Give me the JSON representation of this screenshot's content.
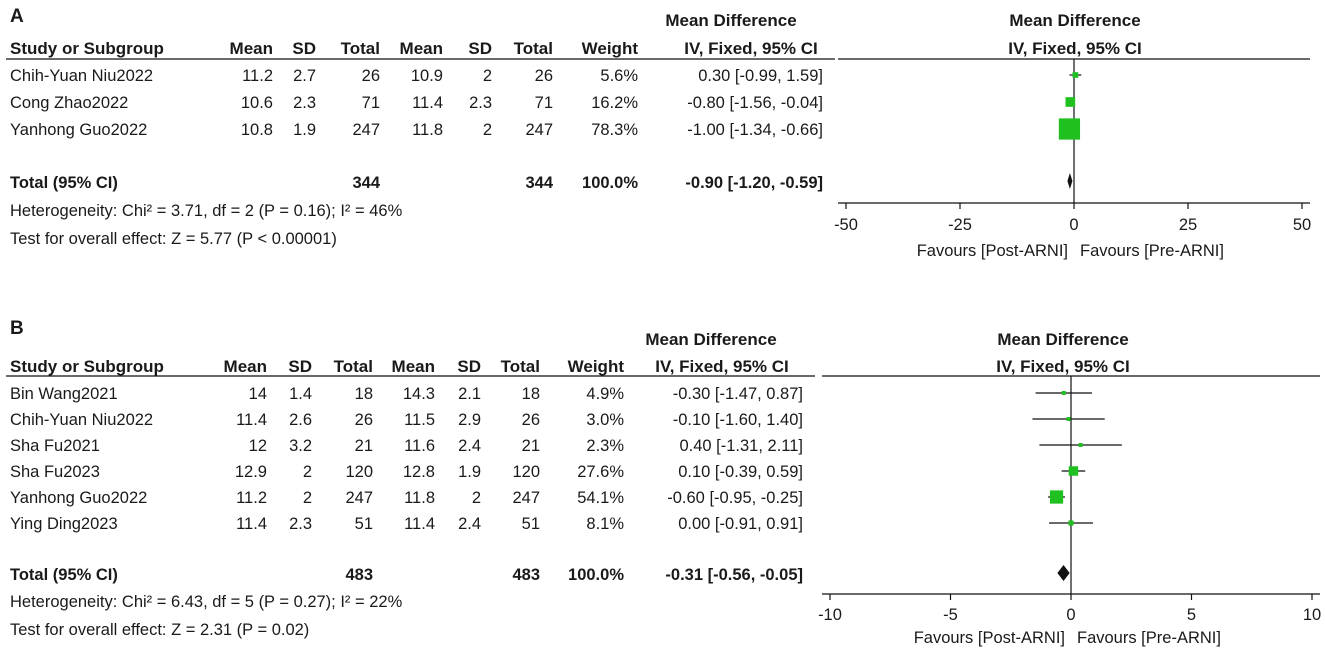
{
  "columns": {
    "study": "Study or Subgroup",
    "mean": "Mean",
    "sd": "SD",
    "total": "Total",
    "weight": "Weight",
    "md": "Mean Difference",
    "method": "IV, Fixed, 95% CI"
  },
  "colors": {
    "marker": "#1fc01f",
    "diamond": "#111111",
    "text": "#1a1a1a"
  },
  "chart_data": [
    {
      "type": "forest",
      "panel_label": "A",
      "studies": [
        {
          "name": "Chih-Yuan Niu2022",
          "post_mean": "11.2",
          "post_sd": "2.7",
          "post_total": "26",
          "pre_mean": "10.9",
          "pre_sd": "2",
          "pre_total": "26",
          "weight": "5.6%",
          "ci_text": "0.30 [-0.99, 1.59]",
          "md": 0.3,
          "lo": -0.99,
          "hi": 1.59,
          "w": 5.6
        },
        {
          "name": "Cong Zhao2022",
          "post_mean": "10.6",
          "post_sd": "2.3",
          "post_total": "71",
          "pre_mean": "11.4",
          "pre_sd": "2.3",
          "pre_total": "71",
          "weight": "16.2%",
          "ci_text": "-0.80 [-1.56, -0.04]",
          "md": -0.8,
          "lo": -1.56,
          "hi": -0.04,
          "w": 16.2
        },
        {
          "name": "Yanhong Guo2022",
          "post_mean": "10.8",
          "post_sd": "1.9",
          "post_total": "247",
          "pre_mean": "11.8",
          "pre_sd": "2",
          "pre_total": "247",
          "weight": "78.3%",
          "ci_text": "-1.00 [-1.34, -0.66]",
          "md": -1.0,
          "lo": -1.34,
          "hi": -0.66,
          "w": 78.3
        }
      ],
      "total": {
        "label": "Total (95% CI)",
        "post_total": "344",
        "pre_total": "344",
        "weight": "100.0%",
        "ci_text": "-0.90 [-1.20, -0.59]",
        "md": -0.9,
        "lo": -1.2,
        "hi": -0.59
      },
      "heterogeneity": "Heterogeneity: Chi² = 3.71, df = 2 (P = 0.16); I² = 46%",
      "overall_effect": "Test for overall effect: Z = 5.77 (P < 0.00001)",
      "axis": {
        "min": -50,
        "max": 50,
        "ticks": [
          -50,
          -25,
          0,
          25,
          50
        ],
        "tick_labels": [
          "-50",
          "-25",
          "0",
          "25",
          "50"
        ]
      },
      "favours_left": "Favours [Post-ARNI]",
      "favours_right": "Favours [Pre-ARNI]"
    },
    {
      "type": "forest",
      "panel_label": "B",
      "studies": [
        {
          "name": "Bin Wang2021",
          "post_mean": "14",
          "post_sd": "1.4",
          "post_total": "18",
          "pre_mean": "14.3",
          "pre_sd": "2.1",
          "pre_total": "18",
          "weight": "4.9%",
          "ci_text": "-0.30 [-1.47, 0.87]",
          "md": -0.3,
          "lo": -1.47,
          "hi": 0.87,
          "w": 4.9
        },
        {
          "name": "Chih-Yuan Niu2022",
          "post_mean": "11.4",
          "post_sd": "2.6",
          "post_total": "26",
          "pre_mean": "11.5",
          "pre_sd": "2.9",
          "pre_total": "26",
          "weight": "3.0%",
          "ci_text": "-0.10 [-1.60, 1.40]",
          "md": -0.1,
          "lo": -1.6,
          "hi": 1.4,
          "w": 3.0
        },
        {
          "name": "Sha Fu2021",
          "post_mean": "12",
          "post_sd": "3.2",
          "post_total": "21",
          "pre_mean": "11.6",
          "pre_sd": "2.4",
          "pre_total": "21",
          "weight": "2.3%",
          "ci_text": "0.40 [-1.31, 2.11]",
          "md": 0.4,
          "lo": -1.31,
          "hi": 2.11,
          "w": 2.3
        },
        {
          "name": "Sha Fu2023",
          "post_mean": "12.9",
          "post_sd": "2",
          "post_total": "120",
          "pre_mean": "12.8",
          "pre_sd": "1.9",
          "pre_total": "120",
          "weight": "27.6%",
          "ci_text": "0.10 [-0.39, 0.59]",
          "md": 0.1,
          "lo": -0.39,
          "hi": 0.59,
          "w": 27.6
        },
        {
          "name": "Yanhong Guo2022",
          "post_mean": "11.2",
          "post_sd": "2",
          "post_total": "247",
          "pre_mean": "11.8",
          "pre_sd": "2",
          "pre_total": "247",
          "weight": "54.1%",
          "ci_text": "-0.60 [-0.95, -0.25]",
          "md": -0.6,
          "lo": -0.95,
          "hi": -0.25,
          "w": 54.1
        },
        {
          "name": "Ying Ding2023",
          "post_mean": "11.4",
          "post_sd": "2.3",
          "post_total": "51",
          "pre_mean": "11.4",
          "pre_sd": "2.4",
          "pre_total": "51",
          "weight": "8.1%",
          "ci_text": "0.00 [-0.91, 0.91]",
          "md": 0.0,
          "lo": -0.91,
          "hi": 0.91,
          "w": 8.1
        }
      ],
      "total": {
        "label": "Total (95% CI)",
        "post_total": "483",
        "pre_total": "483",
        "weight": "100.0%",
        "ci_text": "-0.31 [-0.56, -0.05]",
        "md": -0.31,
        "lo": -0.56,
        "hi": -0.05
      },
      "heterogeneity": "Heterogeneity: Chi² = 6.43, df = 5 (P = 0.27); I² = 22%",
      "overall_effect": "Test for overall effect: Z = 2.31 (P = 0.02)",
      "axis": {
        "min": -10,
        "max": 10,
        "ticks": [
          -10,
          -5,
          0,
          5,
          10
        ],
        "tick_labels": [
          "-10",
          "-5",
          "0",
          "5",
          "10"
        ]
      },
      "favours_left": "Favours [Post-ARNI]",
      "favours_right": "Favours [Pre-ARNI]"
    }
  ]
}
